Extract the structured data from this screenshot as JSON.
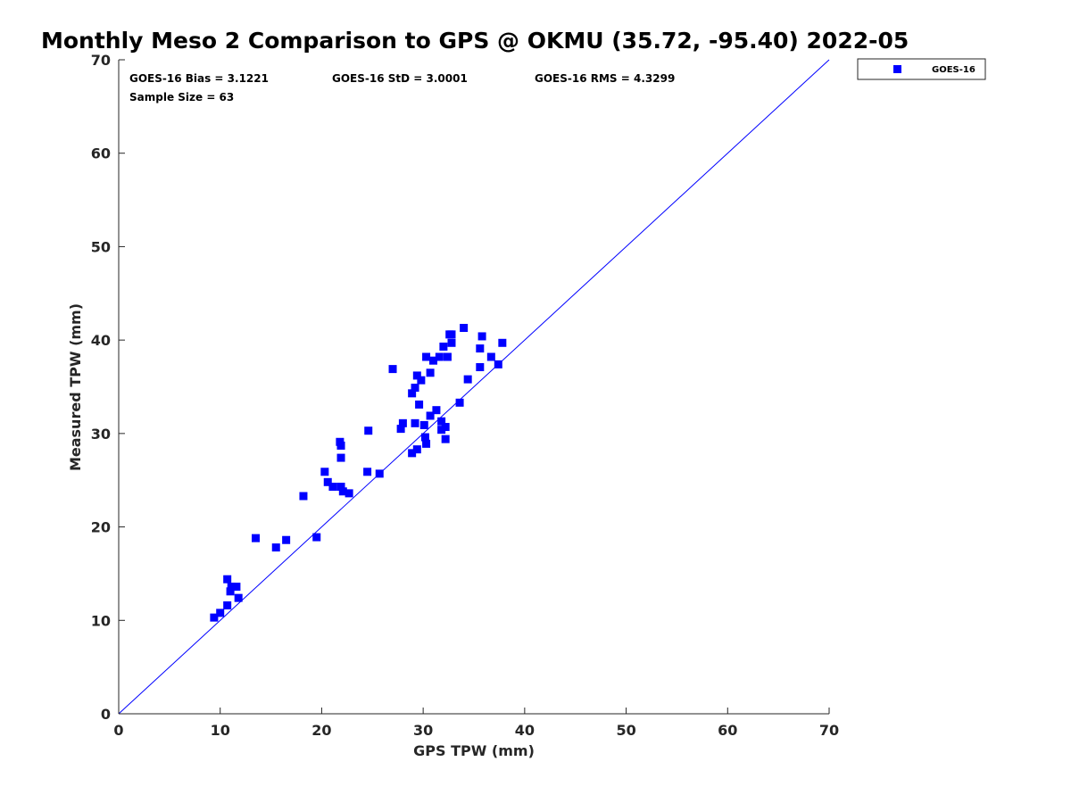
{
  "chart_data": {
    "type": "scatter",
    "title": "Monthly Meso 2 Comparison to GPS @ OKMU (35.72, -95.40) 2022-05",
    "xlabel": "GPS TPW (mm)",
    "ylabel": "Measured TPW (mm)",
    "xlim": [
      0,
      70
    ],
    "ylim": [
      0,
      70
    ],
    "xticks": [
      0,
      10,
      20,
      30,
      40,
      50,
      60,
      70
    ],
    "yticks": [
      0,
      10,
      20,
      30,
      40,
      50,
      60,
      70
    ],
    "grid": false,
    "legend_position": "outside top-right",
    "reference_line": {
      "from": [
        0,
        0
      ],
      "to": [
        70,
        70
      ],
      "color": "#0000ff"
    },
    "stats": {
      "bias": "GOES-16 Bias = 3.1221",
      "std": "GOES-16 StD = 3.0001",
      "rms": "GOES-16 RMS = 4.3299",
      "sample_size": "Sample Size = 63"
    },
    "series": [
      {
        "name": "GOES-16",
        "color": "#0000ff",
        "marker": "square",
        "points": [
          [
            9.4,
            10.3
          ],
          [
            10.0,
            10.8
          ],
          [
            10.7,
            11.6
          ],
          [
            10.7,
            14.4
          ],
          [
            11.0,
            13.1
          ],
          [
            11.1,
            13.6
          ],
          [
            11.6,
            13.6
          ],
          [
            11.8,
            12.4
          ],
          [
            13.5,
            18.8
          ],
          [
            15.5,
            17.8
          ],
          [
            16.5,
            18.6
          ],
          [
            18.2,
            23.3
          ],
          [
            19.5,
            18.9
          ],
          [
            20.3,
            25.9
          ],
          [
            20.6,
            24.8
          ],
          [
            21.1,
            24.3
          ],
          [
            21.8,
            29.1
          ],
          [
            21.9,
            28.7
          ],
          [
            21.9,
            27.4
          ],
          [
            21.9,
            24.3
          ],
          [
            22.1,
            23.8
          ],
          [
            22.7,
            23.6
          ],
          [
            24.5,
            25.9
          ],
          [
            24.6,
            30.3
          ],
          [
            25.7,
            25.7
          ],
          [
            27.0,
            36.9
          ],
          [
            27.8,
            30.5
          ],
          [
            28.0,
            31.1
          ],
          [
            28.9,
            27.9
          ],
          [
            28.9,
            34.3
          ],
          [
            29.2,
            34.9
          ],
          [
            29.2,
            31.1
          ],
          [
            29.4,
            36.2
          ],
          [
            29.4,
            28.3
          ],
          [
            29.6,
            33.1
          ],
          [
            29.8,
            35.7
          ],
          [
            30.1,
            30.9
          ],
          [
            30.2,
            29.6
          ],
          [
            30.3,
            28.9
          ],
          [
            30.3,
            38.2
          ],
          [
            30.7,
            36.5
          ],
          [
            30.7,
            31.9
          ],
          [
            31.0,
            37.8
          ],
          [
            31.3,
            32.5
          ],
          [
            31.6,
            38.2
          ],
          [
            31.8,
            31.3
          ],
          [
            31.8,
            30.4
          ],
          [
            32.0,
            39.3
          ],
          [
            32.2,
            29.4
          ],
          [
            32.2,
            30.7
          ],
          [
            32.4,
            38.2
          ],
          [
            32.6,
            40.6
          ],
          [
            32.8,
            39.7
          ],
          [
            32.8,
            40.6
          ],
          [
            33.6,
            33.3
          ],
          [
            34.0,
            41.3
          ],
          [
            34.4,
            35.8
          ],
          [
            35.6,
            39.1
          ],
          [
            35.6,
            37.1
          ],
          [
            35.8,
            40.4
          ],
          [
            36.7,
            38.2
          ],
          [
            37.4,
            37.4
          ],
          [
            37.8,
            39.7
          ]
        ]
      }
    ]
  }
}
